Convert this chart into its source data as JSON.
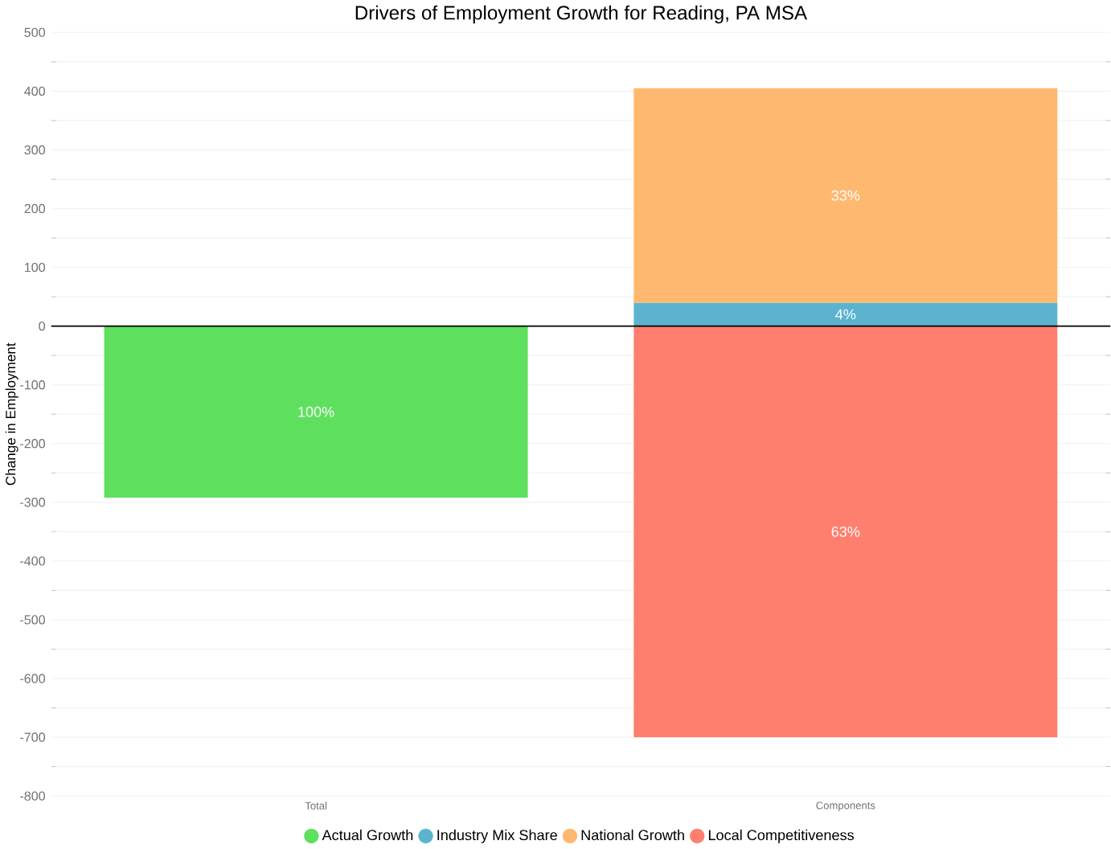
{
  "chart_data": {
    "type": "bar",
    "title": "Drivers of Employment Growth for Reading, PA MSA",
    "ylabel": "Change in Employment",
    "categories": [
      "Total",
      "Components"
    ],
    "stacked": true,
    "series": [
      {
        "name": "Actual Growth",
        "color": "#5ee05e",
        "values": [
          -292,
          null
        ]
      },
      {
        "name": "Industry Mix Share",
        "color": "#5cb3d0",
        "values": [
          null,
          40
        ]
      },
      {
        "name": "National Growth",
        "color": "#ffb86f",
        "values": [
          null,
          365
        ]
      },
      {
        "name": "Local Competitiveness",
        "color": "#ff7f6e",
        "values": [
          null,
          -700
        ]
      }
    ],
    "annotations": [
      "100%",
      "4%",
      "33%",
      "63%"
    ],
    "ylim": [
      -800,
      500
    ],
    "yticks": [
      -800,
      -700,
      -600,
      -500,
      -400,
      -300,
      -200,
      -100,
      0,
      100,
      200,
      300,
      400,
      500
    ],
    "grid": "y",
    "legend": "bottom",
    "ref_lines": [
      {
        "axis": "y",
        "value": 0,
        "color": "#000000"
      }
    ]
  }
}
